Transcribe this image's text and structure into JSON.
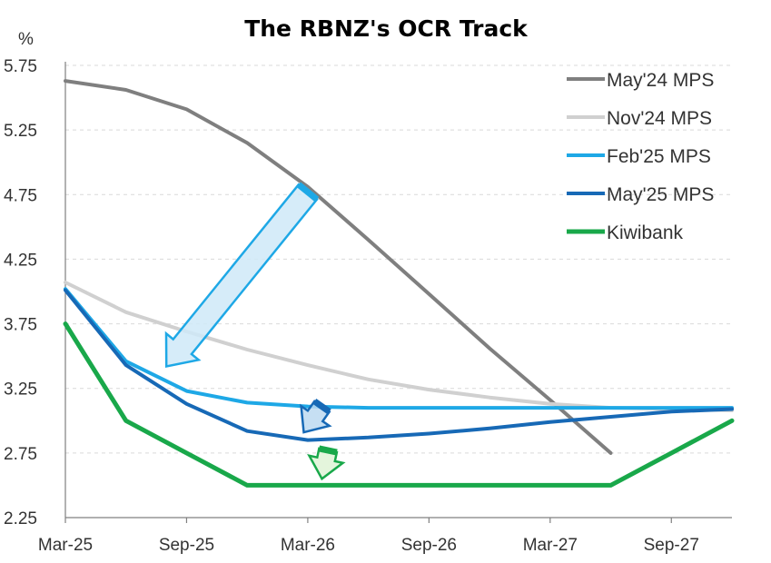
{
  "chart_data": {
    "type": "line",
    "title": "The RBNZ's OCR Track",
    "ylabel": "%",
    "xlabel": "",
    "ylim": [
      2.25,
      5.75
    ],
    "yticks": [
      "2.25",
      "2.75",
      "3.25",
      "3.75",
      "4.25",
      "4.75",
      "5.25",
      "5.75"
    ],
    "xlim": [
      0,
      33
    ],
    "xticks": [
      {
        "pos": 0,
        "label": "Mar-25"
      },
      {
        "pos": 6,
        "label": "Sep-25"
      },
      {
        "pos": 12,
        "label": "Mar-26"
      },
      {
        "pos": 18,
        "label": "Sep-26"
      },
      {
        "pos": 24,
        "label": "Mar-27"
      },
      {
        "pos": 30,
        "label": "Sep-27"
      }
    ],
    "grid": "horizontal-dashed",
    "legend_position": "top-right",
    "series": [
      {
        "name": "May'24 MPS",
        "color": "#7f7f7f",
        "x": [
          0,
          3,
          6,
          9,
          12,
          15,
          18,
          21,
          24,
          27
        ],
        "y": [
          5.63,
          5.56,
          5.41,
          5.15,
          4.81,
          4.4,
          3.98,
          3.56,
          3.16,
          2.75
        ]
      },
      {
        "name": "Nov'24 MPS",
        "color": "#d0d0d0",
        "x": [
          0,
          3,
          6,
          9,
          12,
          15,
          18,
          21,
          24,
          27,
          30,
          33
        ],
        "y": [
          4.07,
          3.84,
          3.69,
          3.55,
          3.43,
          3.32,
          3.24,
          3.18,
          3.13,
          3.1,
          3.09,
          3.08
        ]
      },
      {
        "name": "Feb'25 MPS",
        "color": "#1ea8e6",
        "x": [
          0,
          3,
          6,
          9,
          12,
          15,
          18,
          21,
          24,
          27,
          30,
          33
        ],
        "y": [
          4.02,
          3.46,
          3.23,
          3.14,
          3.11,
          3.1,
          3.1,
          3.1,
          3.1,
          3.1,
          3.1,
          3.1
        ]
      },
      {
        "name": "May'25 MPS",
        "color": "#1769b6",
        "x": [
          0,
          3,
          6,
          9,
          12,
          15,
          18,
          21,
          24,
          27,
          30,
          33
        ],
        "y": [
          4.01,
          3.43,
          3.13,
          2.92,
          2.85,
          2.87,
          2.9,
          2.94,
          2.99,
          3.03,
          3.07,
          3.09
        ]
      },
      {
        "name": "Kiwibank",
        "color": "#19a84a",
        "x": [
          0,
          3,
          6,
          9,
          12,
          15,
          18,
          21,
          24,
          27,
          30,
          33
        ],
        "y": [
          3.75,
          3.0,
          2.75,
          2.5,
          2.5,
          2.5,
          2.5,
          2.5,
          2.5,
          2.5,
          2.75,
          3.0
        ]
      }
    ],
    "annotations": [
      {
        "type": "arrow",
        "name": "annotation-arrow-blue-large",
        "color": "#1ea8e6",
        "fill": "#cfe9f8",
        "from": [
          12,
          4.77
        ],
        "to": [
          5,
          3.42
        ]
      },
      {
        "type": "arrow",
        "name": "annotation-arrow-blue-small",
        "color": "#1769b6",
        "fill": "#bcd9f1",
        "from": [
          12.7,
          3.11
        ],
        "to": [
          11.8,
          2.91
        ]
      },
      {
        "type": "arrow",
        "name": "annotation-arrow-green",
        "color": "#19a84a",
        "fill": "#dff3d6",
        "from": [
          13,
          2.77
        ],
        "to": [
          12.7,
          2.55
        ]
      }
    ]
  }
}
